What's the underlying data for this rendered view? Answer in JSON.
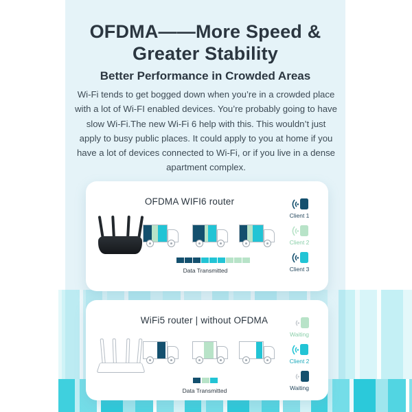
{
  "colors": {
    "navy": "#14506e",
    "green": "#b8e3c8",
    "cyan": "#22c4d5",
    "navy_text": "#27495f",
    "green_text": "#8acfa9",
    "teal_text": "#1aa9bb",
    "heading_text": "#2b3640",
    "body_text": "#3d4a54",
    "background": "#e5f3f8"
  },
  "header": {
    "title_line1": "OFDMA——More Speed &",
    "title_line2": "Greater Stability",
    "subtitle": "Better Performance in Crowded Areas",
    "body": "Wi-Fi tends to get bogged down when you’re in a crowded place with a lot of Wi-FI enabled devices. You’re probably going to have slow Wi-Fi.The new Wi-Fi 6 help with this. This wouldn’t just apply to busy public places. It could apply to you at home if you have a lot of devices connected to Wi-Fi, or if you live in a dense apartment complex."
  },
  "card1": {
    "title": "OFDMA WIFI6 router",
    "router": "OFDMA WiFi6 router (black, 4 antennas)",
    "trucks": [
      {
        "cargo": [
          [
            "navy",
            36
          ],
          [
            "green",
            26
          ],
          [
            "cyan",
            38
          ]
        ]
      },
      {
        "cargo": [
          [
            "navy",
            50
          ],
          [
            "green",
            15
          ],
          [
            "cyan",
            35
          ]
        ]
      },
      {
        "cargo": [
          [
            "navy",
            32
          ],
          [
            "green",
            24
          ],
          [
            "cyan",
            44
          ]
        ]
      }
    ],
    "clients": [
      {
        "label": "Client 1",
        "color": "navy",
        "status": "active"
      },
      {
        "label": "Client 2",
        "color": "green",
        "status": "active"
      },
      {
        "label": "Client 3",
        "color": "cyan",
        "status": "active"
      }
    ],
    "bar_segments": [
      "navy",
      "navy",
      "navy",
      "cyan",
      "cyan",
      "cyan",
      "green",
      "green",
      "green"
    ],
    "bar_label": "Data Transmitted"
  },
  "card2": {
    "title": "WiFi5 router | without OFDMA",
    "router": "WiFi5 router (outline, 4 antennas)",
    "trucks": [
      {
        "cargo": [
          [
            "white",
            60
          ],
          [
            "navy",
            34
          ],
          [
            "white",
            6
          ]
        ]
      },
      {
        "cargo": [
          [
            "white",
            46
          ],
          [
            "green",
            42
          ],
          [
            "white",
            12
          ]
        ]
      },
      {
        "cargo": [
          [
            "white",
            70
          ],
          [
            "cyan",
            26
          ],
          [
            "white",
            4
          ]
        ]
      }
    ],
    "clients": [
      {
        "label": "Waiting",
        "color": "green",
        "status": "waiting"
      },
      {
        "label": "Client 2",
        "color": "cyan",
        "status": "active"
      },
      {
        "label": "Waiting",
        "color": "navy",
        "status": "waiting"
      }
    ],
    "bar_segments": [
      "navy",
      "green",
      "cyan"
    ],
    "bar_label": "Data Transmitted"
  }
}
